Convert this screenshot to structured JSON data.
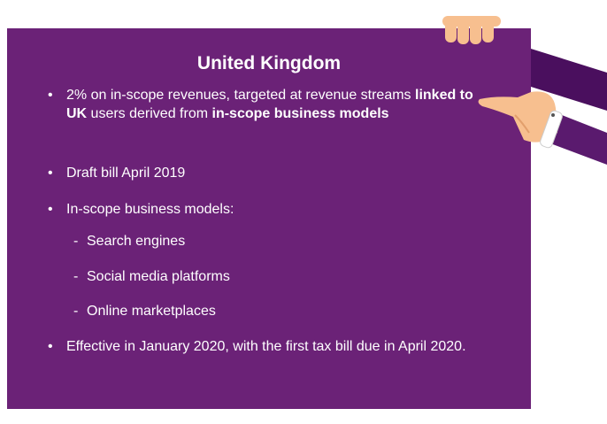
{
  "title": "United Kingdom",
  "bullets": [
    {
      "segments": [
        {
          "text": "2% on in-scope revenues, targeted at revenue streams ",
          "bold": false
        },
        {
          "text": "linked to UK",
          "bold": true
        },
        {
          "text": " users derived from ",
          "bold": false
        },
        {
          "text": "in-scope business models",
          "bold": true
        }
      ]
    },
    {
      "text": "Draft bill April 2019"
    },
    {
      "text": "In-scope business models:",
      "sub_items": [
        "Search engines",
        "Social media platforms",
        "Online marketplaces"
      ]
    },
    {
      "text": "Effective in January 2020, with the first tax bill due in April 2020."
    }
  ]
}
